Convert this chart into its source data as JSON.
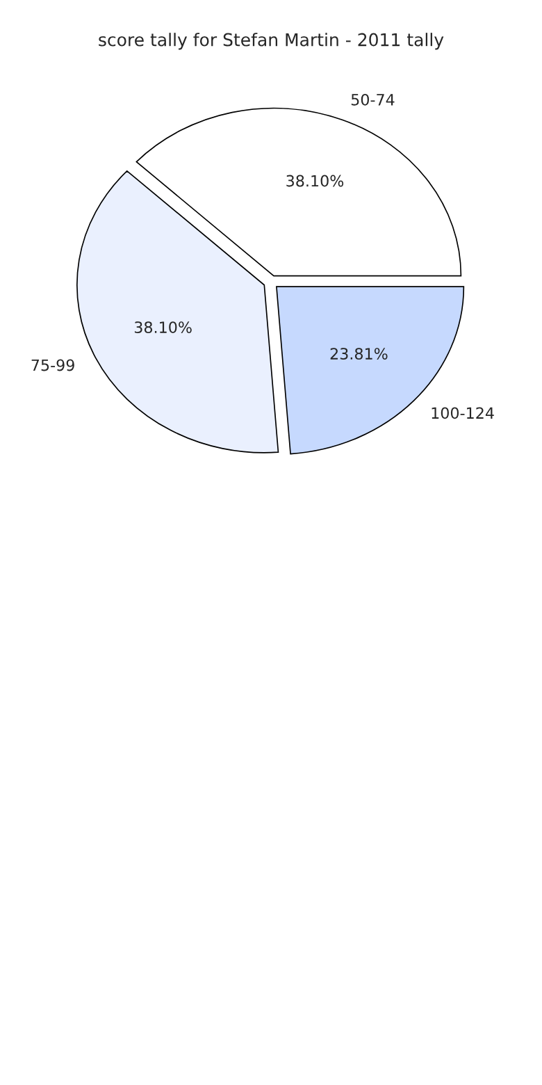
{
  "chart_data": {
    "type": "pie",
    "title": "score tally for Stefan Martin - 2011 tally",
    "categories": [
      "50-74",
      "75-99",
      "100-124"
    ],
    "values": [
      38.1,
      38.1,
      23.81
    ],
    "value_labels": [
      "38.10%",
      "38.10%",
      "23.81%"
    ],
    "colors": [
      "#ffffff",
      "#eaf0fe",
      "#c6d9fe"
    ],
    "legend": false
  }
}
